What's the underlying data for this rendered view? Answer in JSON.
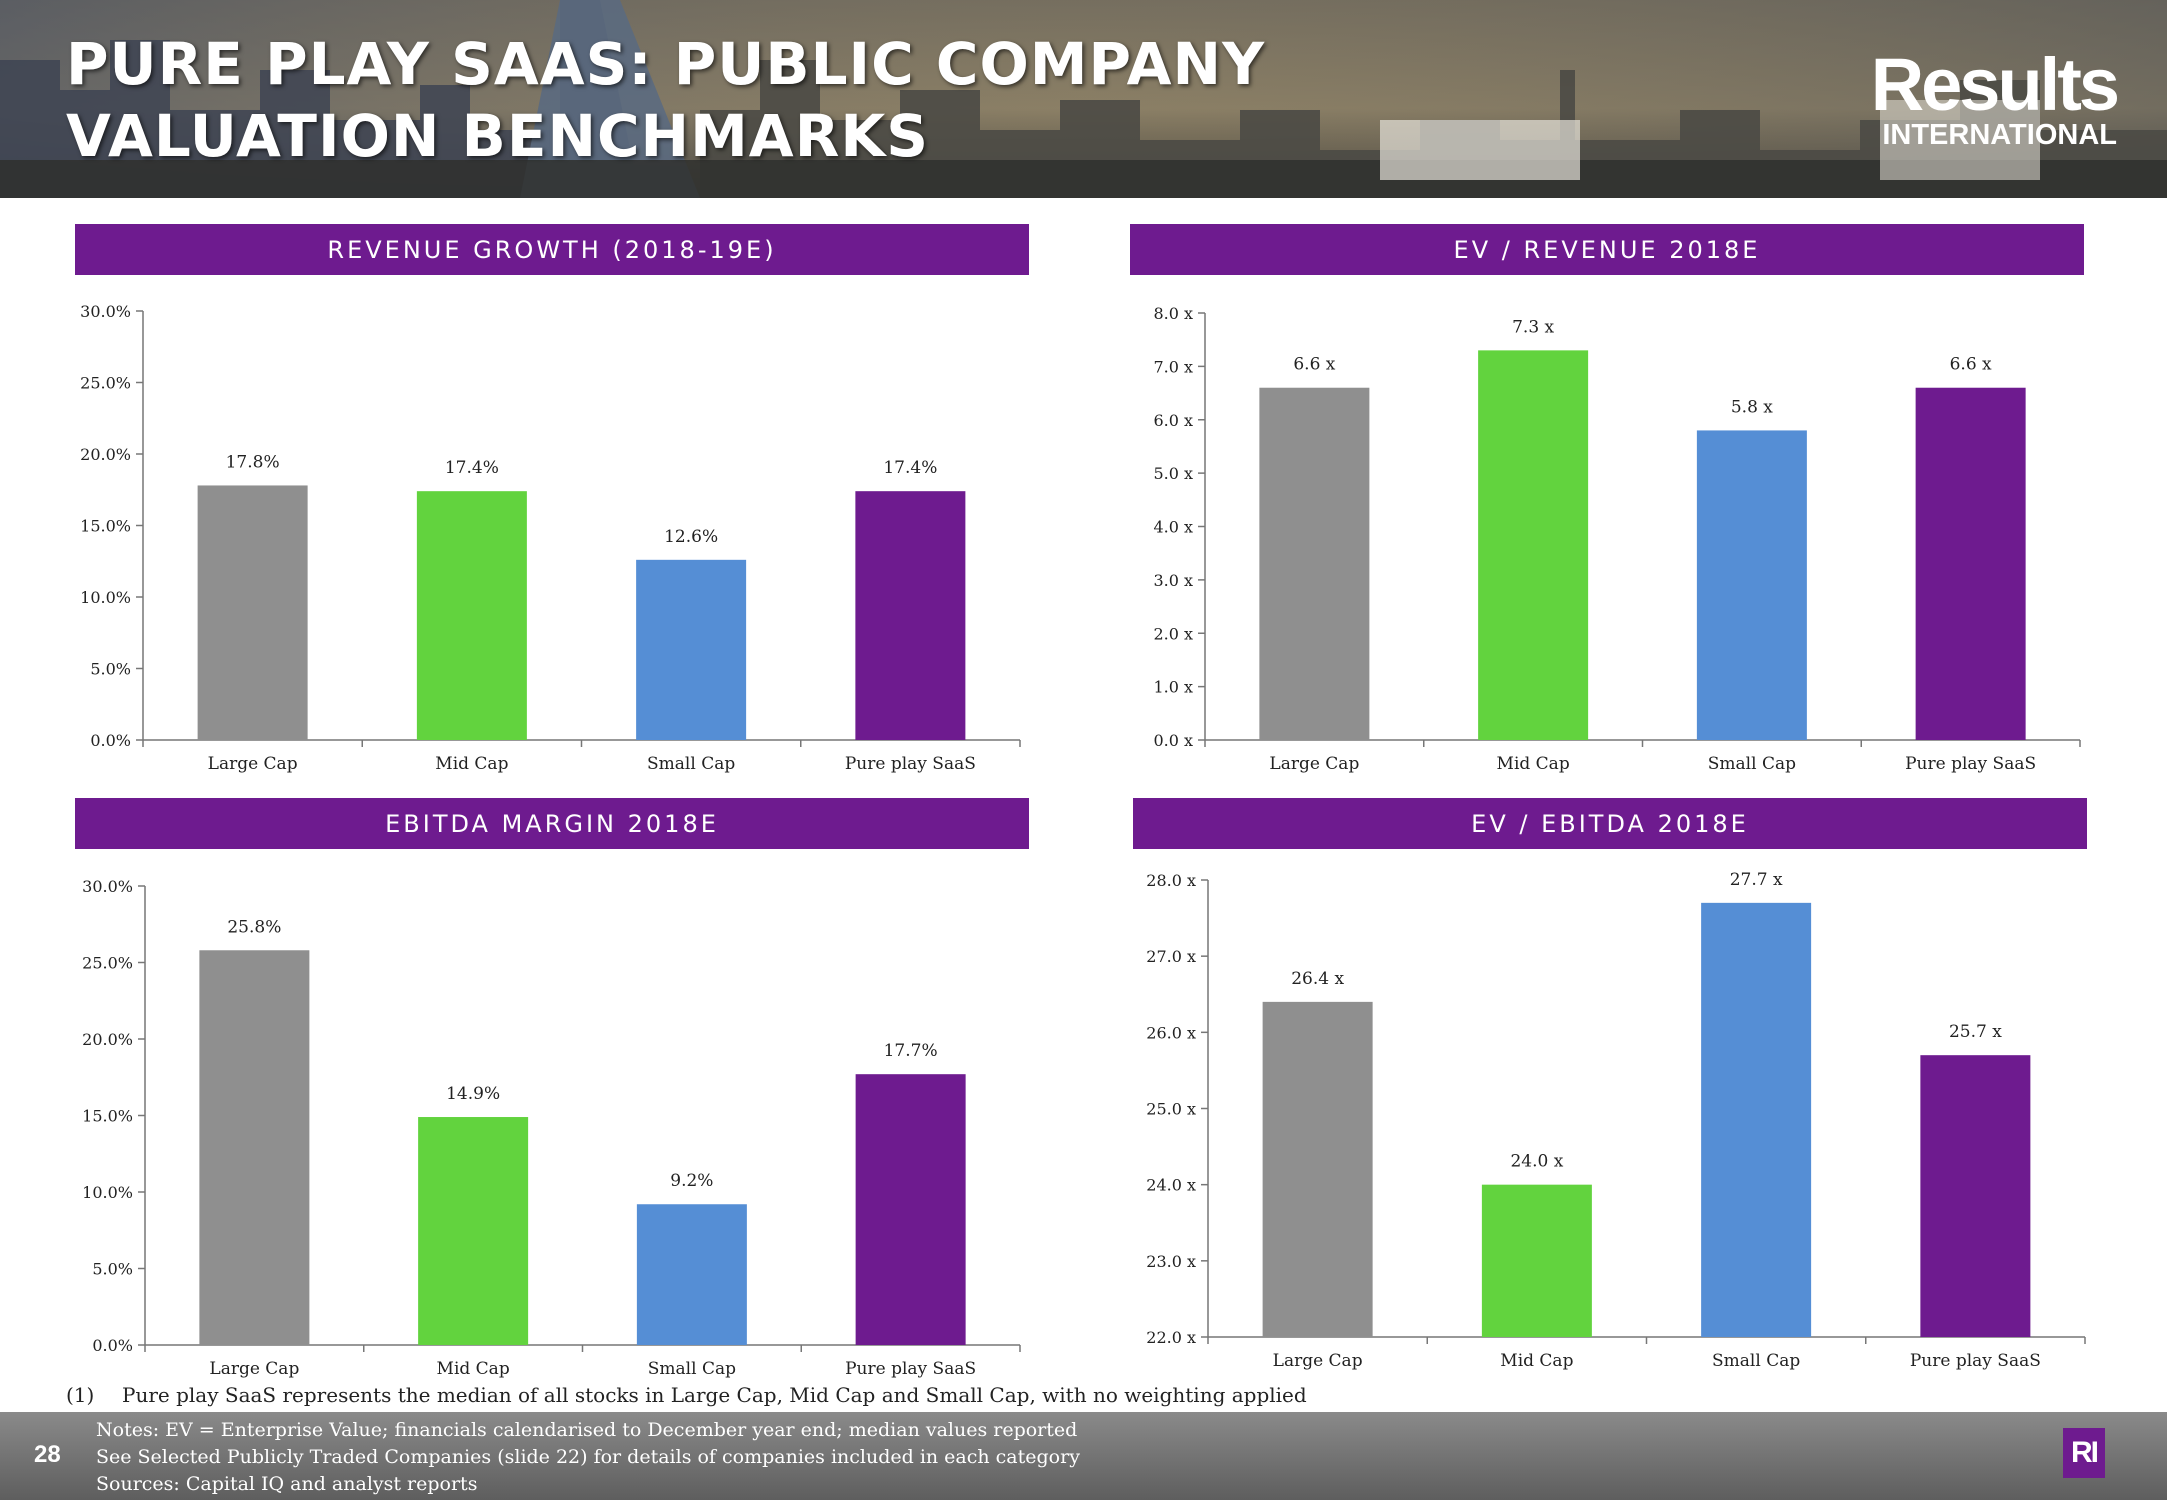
{
  "title": "PURE PLAY SAAS: PUBLIC COMPANY VALUATION BENCHMARKS",
  "logo": {
    "line1": "Results",
    "line2": "INTERNATIONAL",
    "mark": "RI"
  },
  "colors": {
    "accent": "#6e1b8f",
    "large_cap": "#8f8f8f",
    "mid_cap": "#62d33e",
    "small_cap": "#558ed5",
    "pure_play": "#6e1b8f"
  },
  "chart_data": [
    {
      "id": "rg",
      "type": "bar",
      "title": "REVENUE GROWTH (2018-19E)",
      "categories": [
        "Large Cap",
        "Mid Cap",
        "Small Cap",
        "Pure play SaaS"
      ],
      "values": [
        17.8,
        17.4,
        12.6,
        17.4
      ],
      "labels": [
        "17.8%",
        "17.4%",
        "12.6%",
        "17.4%"
      ],
      "ylim": [
        0,
        30
      ],
      "yticks": [
        0,
        5,
        10,
        15,
        20,
        25,
        30
      ],
      "ytick_labels": [
        "0.0%",
        "5.0%",
        "10.0%",
        "15.0%",
        "20.0%",
        "25.0%",
        "30.0%"
      ],
      "colors": [
        "#8f8f8f",
        "#62d33e",
        "#558ed5",
        "#6e1b8f"
      ]
    },
    {
      "id": "evr",
      "type": "bar",
      "title": "EV / REVENUE 2018E",
      "categories": [
        "Large Cap",
        "Mid Cap",
        "Small Cap",
        "Pure play SaaS"
      ],
      "values": [
        6.6,
        7.3,
        5.8,
        6.6
      ],
      "labels": [
        "6.6 x",
        "7.3 x",
        "5.8 x",
        "6.6 x"
      ],
      "ylim": [
        0,
        8
      ],
      "yticks": [
        0,
        1,
        2,
        3,
        4,
        5,
        6,
        7,
        8
      ],
      "ytick_labels": [
        "0.0 x",
        "1.0 x",
        "2.0 x",
        "3.0 x",
        "4.0 x",
        "5.0 x",
        "6.0 x",
        "7.0 x",
        "8.0 x"
      ],
      "colors": [
        "#8f8f8f",
        "#62d33e",
        "#558ed5",
        "#6e1b8f"
      ]
    },
    {
      "id": "em",
      "type": "bar",
      "title": "EBITDA MARGIN 2018E",
      "categories": [
        "Large Cap",
        "Mid Cap",
        "Small Cap",
        "Pure play SaaS"
      ],
      "values": [
        25.8,
        14.9,
        9.2,
        17.7
      ],
      "labels": [
        "25.8%",
        "14.9%",
        "9.2%",
        "17.7%"
      ],
      "ylim": [
        0,
        30
      ],
      "yticks": [
        0,
        5,
        10,
        15,
        20,
        25,
        30
      ],
      "ytick_labels": [
        "0.0%",
        "5.0%",
        "10.0%",
        "15.0%",
        "20.0%",
        "25.0%",
        "30.0%"
      ],
      "colors": [
        "#8f8f8f",
        "#62d33e",
        "#558ed5",
        "#6e1b8f"
      ]
    },
    {
      "id": "eve",
      "type": "bar",
      "title": "EV / EBITDA 2018E",
      "categories": [
        "Large Cap",
        "Mid Cap",
        "Small Cap",
        "Pure play SaaS"
      ],
      "values": [
        26.4,
        24.0,
        27.7,
        25.7
      ],
      "labels": [
        "26.4 x",
        "24.0 x",
        "27.7 x",
        "25.7 x"
      ],
      "ylim": [
        22,
        28
      ],
      "yticks": [
        22,
        23,
        24,
        25,
        26,
        27,
        28
      ],
      "ytick_labels": [
        "22.0 x",
        "23.0 x",
        "24.0 x",
        "25.0 x",
        "26.0 x",
        "27.0 x",
        "28.0 x"
      ],
      "colors": [
        "#8f8f8f",
        "#62d33e",
        "#558ed5",
        "#6e1b8f"
      ]
    }
  ],
  "footnote": {
    "number": "(1)",
    "text": "Pure play SaaS represents the median of all stocks in Large Cap, Mid Cap and Small Cap, with no weighting applied"
  },
  "footer": {
    "page_number": "28",
    "notes": [
      "Notes: EV = Enterprise Value; financials calendarised to December year end; median values reported",
      "See Selected Publicly Traded Companies (slide 22) for details of companies included in each category",
      "Sources: Capital IQ and analyst reports"
    ]
  }
}
